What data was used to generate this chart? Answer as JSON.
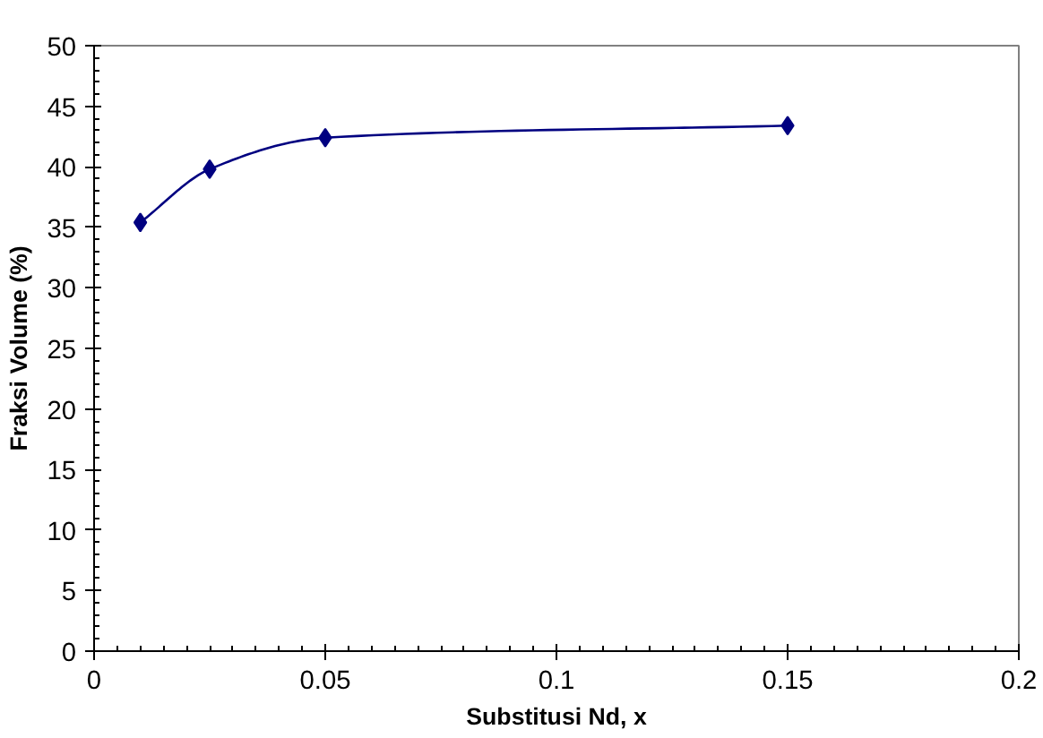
{
  "chart_data": {
    "type": "line",
    "xlabel": "Substitusi Nd, x",
    "ylabel": "Fraksi Volume (%)",
    "x": [
      0.01,
      0.025,
      0.05,
      0.15
    ],
    "series": [
      {
        "color": "#000080",
        "values": [
          35.4,
          39.8,
          42.4,
          43.4
        ]
      }
    ],
    "xlim": [
      0,
      0.2
    ],
    "xticks": [
      0,
      0.05,
      0.1,
      0.15,
      0.2
    ],
    "ylim": [
      0,
      50
    ],
    "yticks": [
      0,
      5,
      10,
      15,
      20,
      25,
      30,
      35,
      40,
      45,
      50
    ],
    "marker": "diamond",
    "line_style": "solid"
  }
}
